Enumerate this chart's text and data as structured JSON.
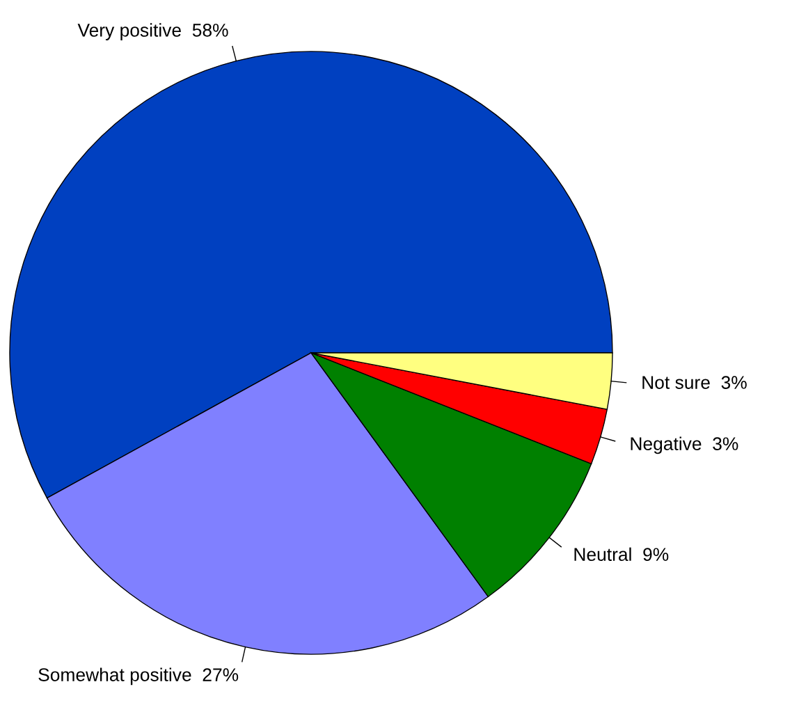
{
  "chart_data": {
    "type": "pie",
    "categories": [
      "Very positive",
      "Somewhat positive",
      "Neutral",
      "Negative",
      "Not sure"
    ],
    "values": [
      58,
      27,
      9,
      3,
      3
    ],
    "value_labels": [
      "58%",
      "27%",
      "9%",
      "3%",
      "3%"
    ],
    "colors": [
      "#0040c0",
      "#8080ff",
      "#008000",
      "#ff0000",
      "#ffff80"
    ]
  }
}
